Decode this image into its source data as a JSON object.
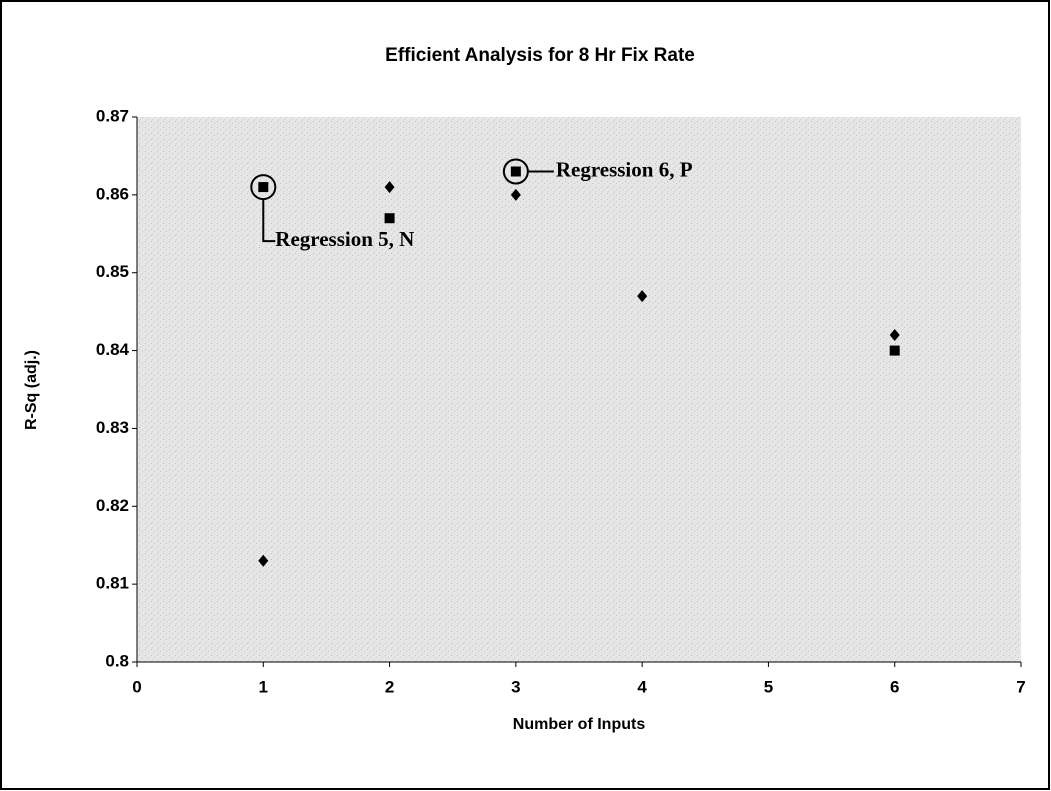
{
  "chart_data": {
    "type": "scatter",
    "title": "Efficient Analysis for 8 Hr Fix Rate",
    "x_label": "Number of Inputs",
    "y_label": "R-Sq (adj.)",
    "xlim": [
      0,
      7
    ],
    "xticks": [
      0,
      1,
      2,
      3,
      4,
      5,
      6,
      7
    ],
    "ylim": [
      0.8,
      0.87
    ],
    "yticks": [
      0.8,
      0.81,
      0.82,
      0.83,
      0.84,
      0.85,
      0.86,
      0.87
    ],
    "series": [
      {
        "marker": "diamond",
        "color": "#000000",
        "x": [
          1,
          2,
          3,
          4,
          6
        ],
        "values": [
          0.813,
          0.861,
          0.86,
          0.847,
          0.842
        ]
      },
      {
        "marker": "square",
        "color": "#000000",
        "x": [
          1,
          2,
          3,
          6
        ],
        "values": [
          0.861,
          0.857,
          0.863,
          0.84
        ]
      }
    ],
    "annotations": [
      {
        "text": "Regression 5, N",
        "x": 1,
        "y": 0.861
      },
      {
        "text": "Regression 6, P",
        "x": 3,
        "y": 0.863
      }
    ]
  }
}
